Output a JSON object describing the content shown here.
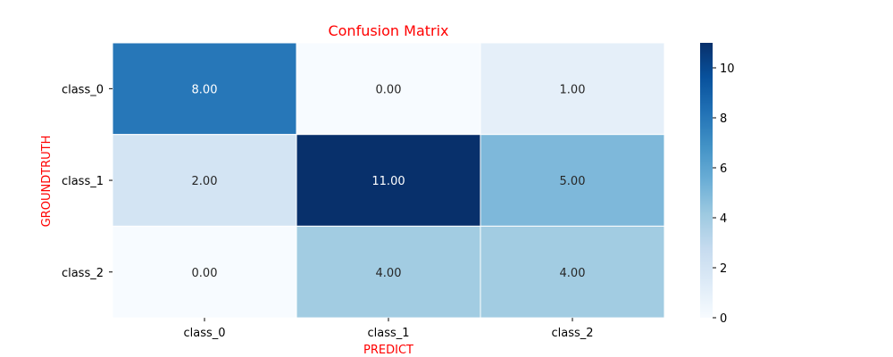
{
  "chart_data": {
    "type": "heatmap",
    "title": "Confusion Matrix",
    "xlabel": "PREDICT",
    "ylabel": "GROUNDTRUTH",
    "x_categories": [
      "class_0",
      "class_1",
      "class_2"
    ],
    "y_categories": [
      "class_0",
      "class_1",
      "class_2"
    ],
    "values": [
      [
        8,
        0,
        1
      ],
      [
        2,
        11,
        5
      ],
      [
        0,
        4,
        4
      ]
    ],
    "cell_labels": [
      [
        "8.00",
        "0.00",
        "1.00"
      ],
      [
        "2.00",
        "11.00",
        "5.00"
      ],
      [
        "0.00",
        "4.00",
        "4.00"
      ]
    ],
    "colormap": "Blues",
    "colorbar": {
      "range": [
        0,
        11
      ],
      "ticks": [
        0,
        2,
        4,
        6,
        8,
        10
      ],
      "tick_labels": [
        "0",
        "2",
        "4",
        "6",
        "8",
        "10"
      ]
    },
    "colors": {
      "title": "#ff0000",
      "axis_titles": "#ff0000",
      "cell_border": "#ffffff"
    }
  }
}
